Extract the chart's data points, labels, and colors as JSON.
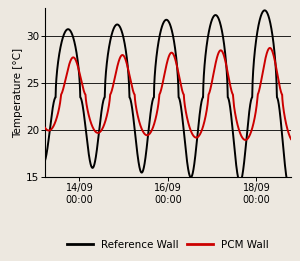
{
  "ylabel": "Temperature [°C]",
  "ylim": [
    15,
    33
  ],
  "yticks": [
    15,
    20,
    25,
    30
  ],
  "xlim": [
    0,
    4.17
  ],
  "xtick_positions": [
    0.583,
    2.083,
    3.583
  ],
  "xtick_labels": [
    "14/09\n00:00",
    "16/09\n00:00",
    "18/09\n00:00"
  ],
  "ref_color": "#000000",
  "pcm_color": "#cc0000",
  "legend_labels": [
    "Reference Wall",
    "PCM Wall"
  ],
  "background_color": "#ede8e0",
  "line_width": 1.4,
  "period": 0.8333,
  "ref_base": 23.5,
  "ref_amp": 7.0,
  "ref_amp_growth": 0.6,
  "ref_phase": 0.18,
  "pcm_base": 23.8,
  "pcm_amp": 3.8,
  "pcm_amp_growth": 0.3,
  "pcm_phase_lag": 0.09,
  "sharp_power": 0.55
}
